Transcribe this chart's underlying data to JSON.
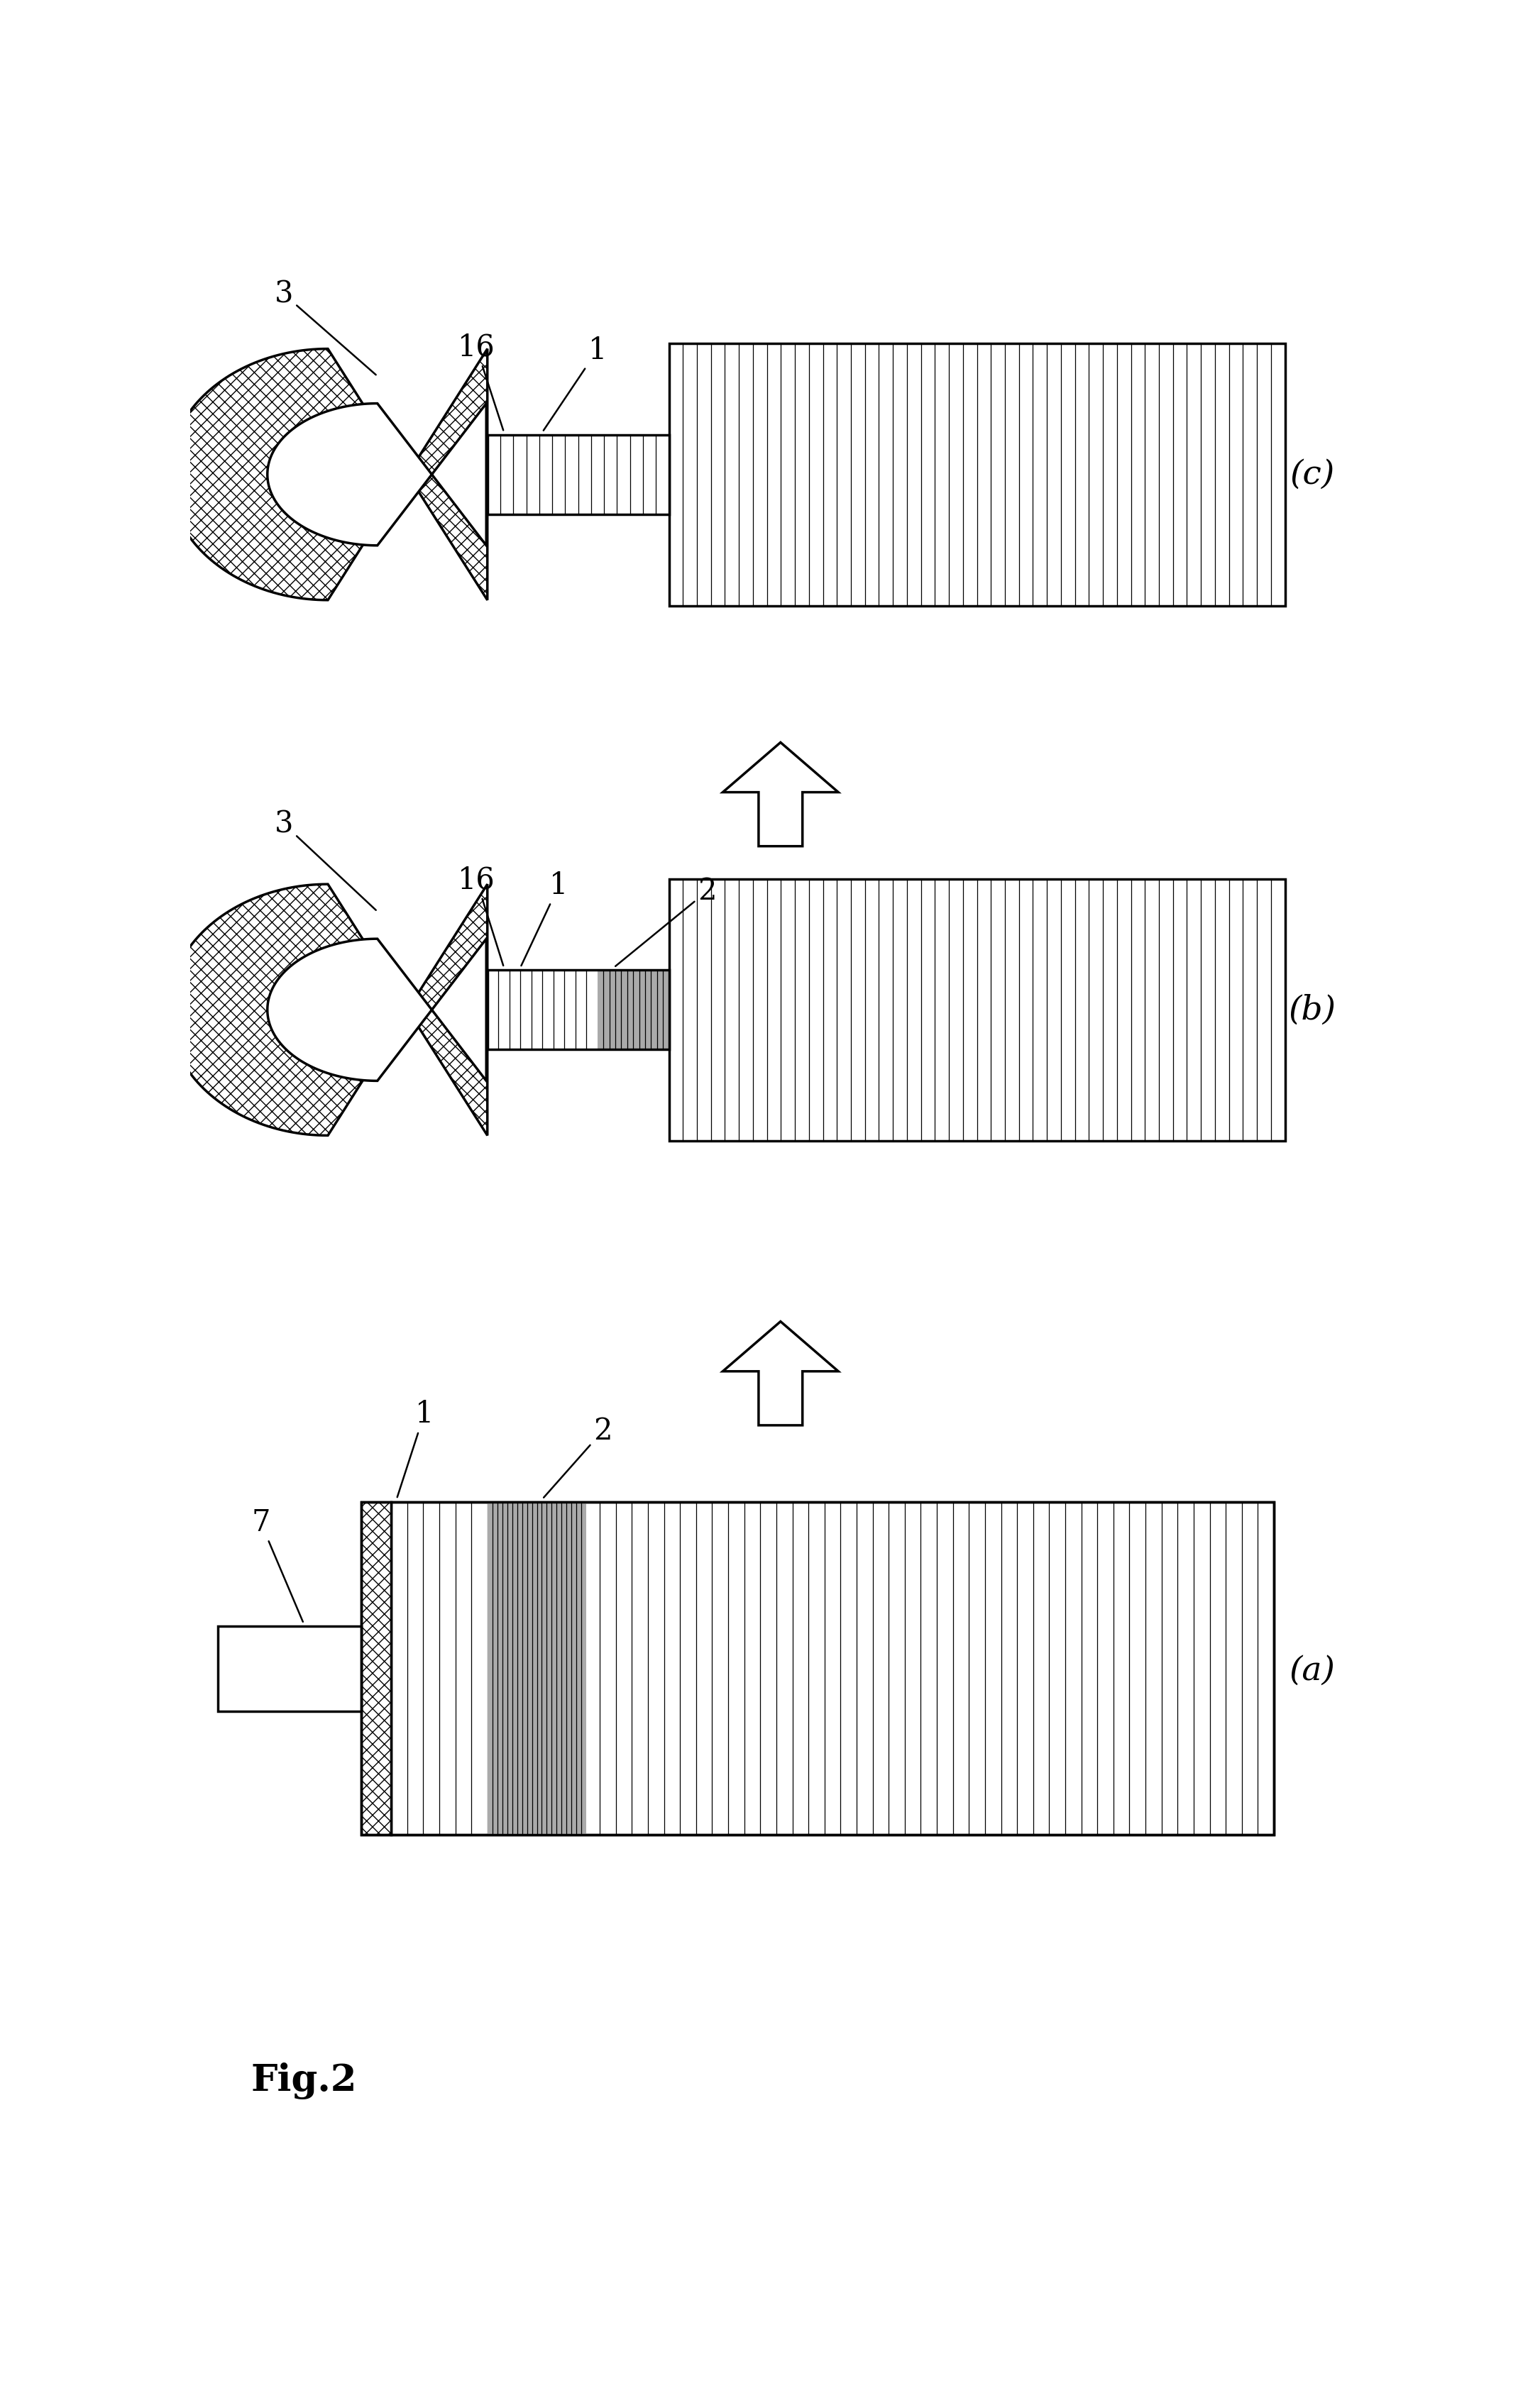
{
  "bg_color": "#ffffff",
  "gray_color": "#aaaaaa",
  "lw_main": 2.5,
  "lw_thin": 1.8,
  "lw_line": 0.9,
  "fontsize_label": 30,
  "fontsize_panel": 34,
  "fontsize_fig": 38,
  "fig_label": "Fig.2",
  "panel_a_label": "(a)",
  "panel_b_label": "(b)",
  "panel_c_label": "(c)"
}
